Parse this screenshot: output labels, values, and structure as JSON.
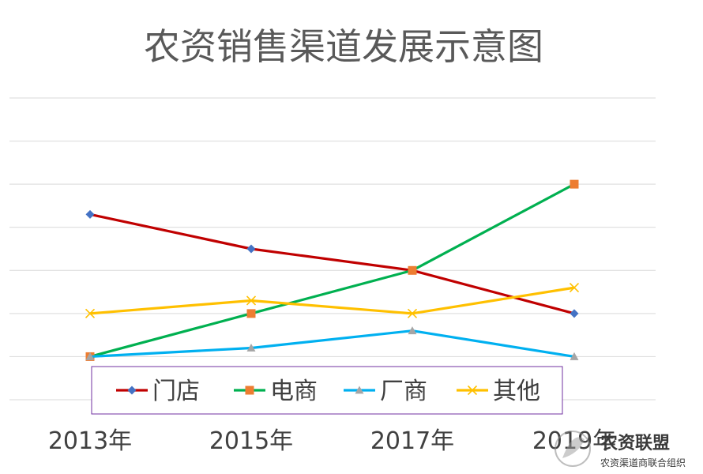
{
  "chart_data": {
    "type": "line",
    "title": "农资销售渠道发展示意图",
    "categories": [
      "2013年",
      "2015年",
      "2017年",
      "2019年"
    ],
    "ylim": [
      0,
      7
    ],
    "grid": true,
    "legend": {
      "placement": "bottom-center",
      "border_color": "#7030A0"
    },
    "series": [
      {
        "name": "门店",
        "values": [
          4.3,
          3.5,
          3.0,
          2.0
        ],
        "color": "#C00000",
        "marker": "diamond",
        "marker_color": "#4472C4"
      },
      {
        "name": "电商",
        "values": [
          1.0,
          2.0,
          3.0,
          5.0
        ],
        "color": "#00B050",
        "marker": "square",
        "marker_color": "#ED7D31"
      },
      {
        "name": "厂商",
        "values": [
          1.0,
          1.2,
          1.6,
          1.0
        ],
        "color": "#00B0F0",
        "marker": "triangle",
        "marker_color": "#A5A5A5"
      },
      {
        "name": "其他",
        "values": [
          2.0,
          2.3,
          2.0,
          2.6
        ],
        "color": "#FFC000",
        "marker": "x",
        "marker_color": "#FFC000"
      }
    ]
  },
  "watermark": {
    "title": "农资联盟",
    "subtitle": "农资渠道商联合组织"
  }
}
